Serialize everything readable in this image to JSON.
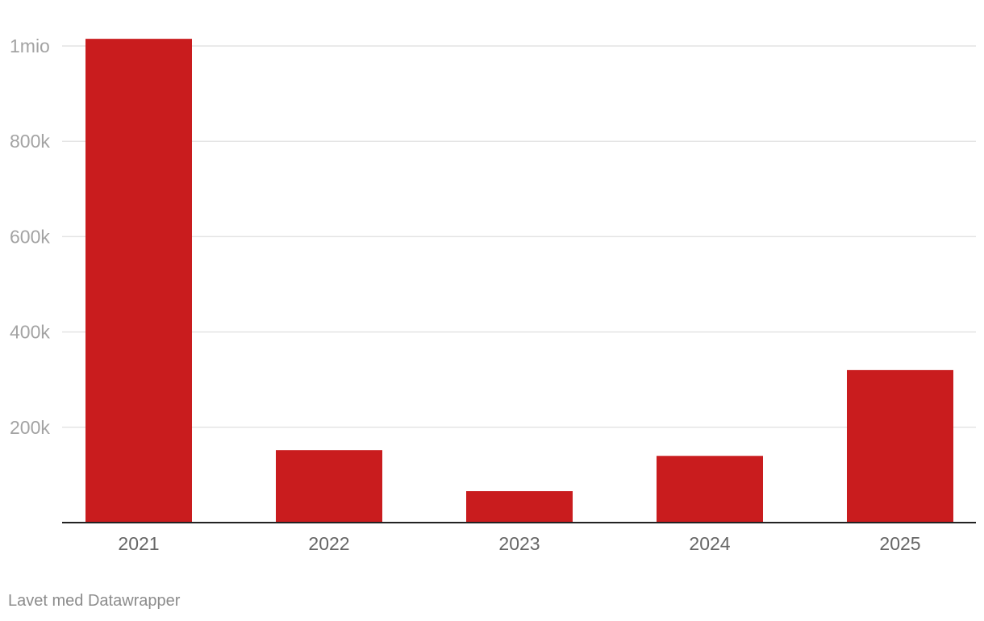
{
  "chart_data": {
    "type": "bar",
    "title": "",
    "xlabel": "",
    "ylabel": "",
    "categories": [
      "2021",
      "2022",
      "2023",
      "2024",
      "2025"
    ],
    "values": [
      1015000,
      152000,
      66000,
      140000,
      320000
    ],
    "ylim": [
      0,
      1000000
    ],
    "yticks": [
      200000,
      400000,
      600000,
      800000,
      1000000
    ],
    "ytick_labels": [
      "200k",
      "400k",
      "600k",
      "800k",
      "1mio"
    ],
    "grid": true,
    "legend": "none",
    "bar_color": "#c91c1e"
  },
  "footer": {
    "credit": "Lavet med Datawrapper"
  }
}
